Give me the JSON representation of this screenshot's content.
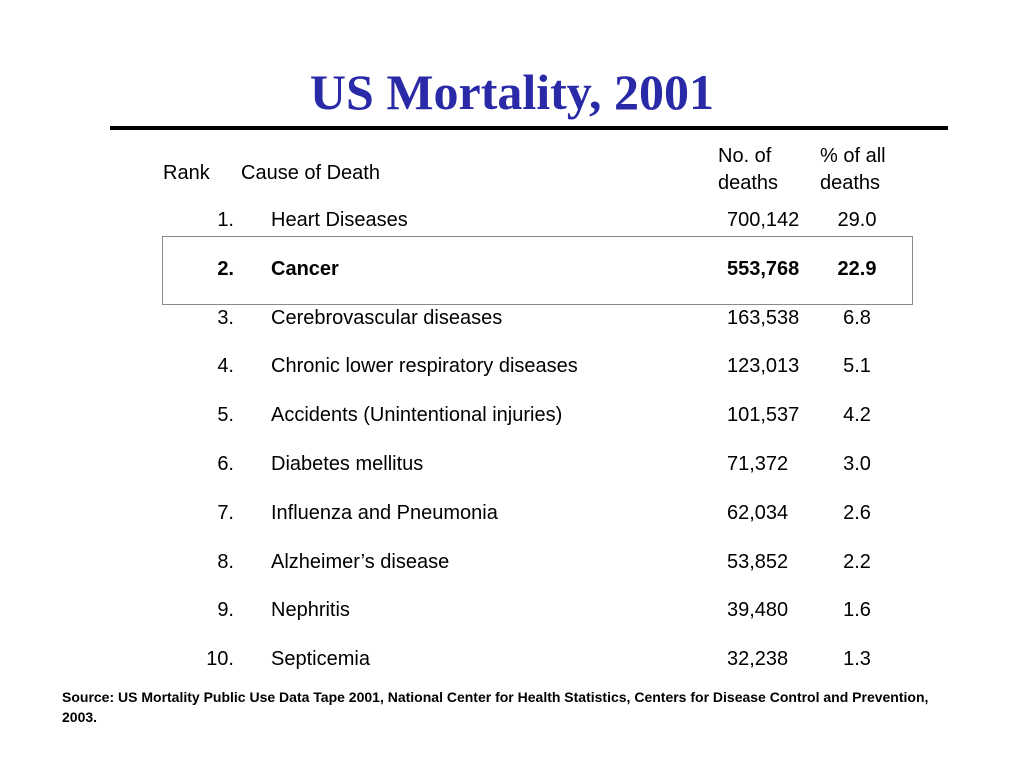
{
  "title": "US Mortality, 2001",
  "headers": {
    "rank": "Rank",
    "cause": "Cause of Death",
    "num_line1": "No. of",
    "num_line2": "deaths",
    "pct_line1": "% of all",
    "pct_line2": "deaths"
  },
  "rows": [
    {
      "rank": "1.",
      "cause": "Heart Diseases",
      "num": "700,142",
      "pct": "29.0",
      "highlight": false
    },
    {
      "rank": "2.",
      "cause": "Cancer",
      "num": "553,768",
      "pct": "22.9",
      "highlight": true
    },
    {
      "rank": "3.",
      "cause": "Cerebrovascular diseases",
      "num": "163,538",
      "pct": "6.8",
      "highlight": false
    },
    {
      "rank": "4.",
      "cause": "Chronic lower respiratory diseases",
      "num": "123,013",
      "pct": "5.1",
      "highlight": false
    },
    {
      "rank": "5.",
      "cause": "Accidents (Unintentional injuries)",
      "num": "101,537",
      "pct": "4.2",
      "highlight": false
    },
    {
      "rank": "6.",
      "cause": "Diabetes mellitus",
      "num": "71,372",
      "pct": "3.0",
      "highlight": false
    },
    {
      "rank": "7.",
      "cause": "Influenza and Pneumonia",
      "num": "62,034",
      "pct": "2.6",
      "highlight": false
    },
    {
      "rank": "8.",
      "cause": "Alzheimer’s disease",
      "num": "53,852",
      "pct": "2.2",
      "highlight": false
    },
    {
      "rank": "9.",
      "cause": "Nephritis",
      "num": "39,480",
      "pct": "1.6",
      "highlight": false
    },
    {
      "rank": "10.",
      "cause": "Septicemia",
      "num": "32,238",
      "pct": "1.3",
      "highlight": false
    }
  ],
  "source": "Source: US Mortality Public Use Data Tape 2001, National Center for Health Statistics, Centers for Disease Control and Prevention, 2003.",
  "colors": {
    "title": "#2a2aa8",
    "rule": "#000000",
    "highlight_border": "#8a8a8a"
  }
}
